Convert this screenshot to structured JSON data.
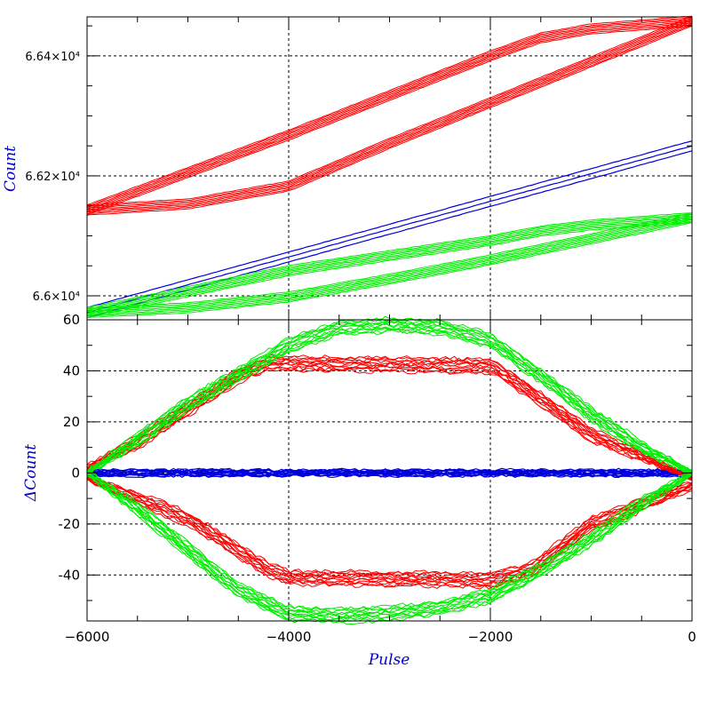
{
  "chart_data": [
    {
      "type": "line",
      "panel": "top",
      "ylabel": "Count",
      "xlim": [
        -6000,
        0
      ],
      "ylim": [
        65960,
        66465
      ],
      "yticks": [
        66000,
        66200,
        66400
      ],
      "ytick_labels": [
        "6.6×10⁴",
        "6.62×10⁴",
        "6.64×10⁴"
      ],
      "xticks": [
        -6000,
        -4000,
        -2000,
        0
      ],
      "grid": true,
      "series": [
        {
          "color": "#0000dd",
          "role": "linear",
          "x": [
            -6000,
            0
          ],
          "y": [
            65972,
            66250
          ]
        },
        {
          "color": "#ff0000",
          "role": "loop-upper",
          "x": [
            -6000,
            -4000,
            -2000,
            -1500,
            -1000,
            0
          ],
          "y": [
            66143,
            66268,
            66400,
            66430,
            66445,
            66458
          ]
        },
        {
          "color": "#ff0000",
          "role": "loop-lower",
          "x": [
            -6000,
            -5000,
            -4000,
            -3000,
            -2000,
            -1000,
            0
          ],
          "y": [
            66143,
            66153,
            66183,
            66254,
            66322,
            66390,
            66458
          ]
        },
        {
          "color": "#00ee00",
          "role": "loop-upper",
          "x": [
            -6000,
            -4000,
            -2000,
            -1500,
            -1000,
            0
          ],
          "y": [
            65972,
            66042,
            66092,
            66108,
            66118,
            66130
          ]
        },
        {
          "color": "#00ee00",
          "role": "loop-lower",
          "x": [
            -6000,
            -5000,
            -4000,
            -3000,
            -2000,
            -1000,
            0
          ],
          "y": [
            65972,
            65980,
            65998,
            66028,
            66060,
            66095,
            66130
          ]
        }
      ]
    },
    {
      "type": "line",
      "panel": "bottom",
      "xlabel": "Pulse",
      "ylabel": "ΔCount",
      "xlim": [
        -6000,
        0
      ],
      "ylim": [
        -58,
        60
      ],
      "yticks": [
        -40,
        -20,
        0,
        20,
        40,
        60
      ],
      "xticks": [
        -6000,
        -4000,
        -2000,
        0
      ],
      "grid": true,
      "series": [
        {
          "color": "#0000dd",
          "role": "zero-band",
          "x": [
            -6000,
            -4000,
            -2000,
            0
          ],
          "y": [
            0,
            0,
            0,
            0
          ]
        },
        {
          "color": "#ff0000",
          "role": "upper-branch",
          "x": [
            -6000,
            -5500,
            -4500,
            -4200,
            -2000,
            -1800,
            -1000,
            0
          ],
          "y": [
            2,
            12,
            38,
            43,
            42,
            37,
            15,
            -2
          ]
        },
        {
          "color": "#ff0000",
          "role": "lower-branch",
          "x": [
            -6000,
            -5000,
            -4200,
            -4000,
            -2000,
            -1600,
            -1000,
            0
          ],
          "y": [
            -2,
            -18,
            -38,
            -41,
            -42,
            -38,
            -20,
            -5
          ]
        },
        {
          "color": "#00ee00",
          "role": "upper-branch",
          "x": [
            -6000,
            -5500,
            -5000,
            -4000,
            -3500,
            -3000,
            -2500,
            -2000,
            -1500,
            -1000,
            -500,
            0
          ],
          "y": [
            0,
            13,
            27,
            50,
            57,
            58,
            57,
            52,
            38,
            23,
            10,
            0
          ]
        },
        {
          "color": "#00ee00",
          "role": "lower-branch",
          "x": [
            -6000,
            -5500,
            -5000,
            -4500,
            -4000,
            -3500,
            -3000,
            -2500,
            -2000,
            -1500,
            -1000,
            -500,
            0
          ],
          "y": [
            0,
            -14,
            -30,
            -46,
            -55,
            -56,
            -55,
            -53,
            -48,
            -38,
            -26,
            -12,
            0
          ]
        }
      ]
    }
  ]
}
